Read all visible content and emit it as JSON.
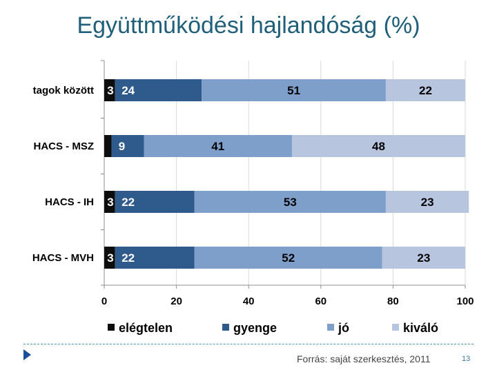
{
  "title": "Együttműködési hajlandóság (%)",
  "footer": {
    "source": "Forrás: saját szerkesztés, 2011",
    "page_number": "13"
  },
  "colors": {
    "elégtelen": "#0d0d0d",
    "gyenge": "#2f5a8c",
    "jó": "#7f9fcb",
    "kiváló": "#b7c5de"
  },
  "chart_data": {
    "type": "bar",
    "orientation": "horizontal",
    "stacked": true,
    "categories": [
      "tagok között",
      "HACS - MSZ",
      "HACS - IH",
      "HACS - MVH"
    ],
    "series": [
      {
        "name": "elégtelen",
        "values": [
          3,
          2,
          3,
          3
        ]
      },
      {
        "name": "gyenge",
        "values": [
          24,
          9,
          22,
          22
        ]
      },
      {
        "name": "jó",
        "values": [
          51,
          41,
          53,
          52
        ]
      },
      {
        "name": "kiváló",
        "values": [
          22,
          48,
          23,
          23
        ]
      }
    ],
    "xlim": [
      0,
      100
    ],
    "xticks": [
      0,
      20,
      40,
      60,
      80,
      100
    ],
    "grid": true,
    "legend": "bottom"
  }
}
